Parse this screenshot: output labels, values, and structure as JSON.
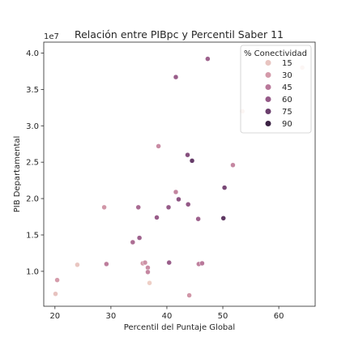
{
  "chart_data": {
    "type": "scatter",
    "title": "Relación entre PIBpc y Percentil Saber 11",
    "xlabel": "Percentil del Puntaje Global",
    "ylabel": "PIB Departamental",
    "y_offset_text": "1e7",
    "xlim": [
      18,
      66.5
    ],
    "ylim": [
      5200000,
      41500000
    ],
    "x_ticks": [
      20,
      30,
      40,
      50,
      60
    ],
    "x_tick_labels": [
      "20",
      "30",
      "40",
      "50",
      "60"
    ],
    "y_ticks": [
      10000000,
      15000000,
      20000000,
      25000000,
      30000000,
      35000000,
      40000000
    ],
    "y_tick_labels": [
      "1.0",
      "1.5",
      "2.0",
      "2.5",
      "3.0",
      "3.5",
      "4.0"
    ],
    "grid": false,
    "legend": {
      "title": "% Conectividad",
      "placement": "top-right",
      "entries": [
        {
          "label": "15",
          "color": "#e8c4c0"
        },
        {
          "label": "30",
          "color": "#d49aaa"
        },
        {
          "label": "45",
          "color": "#b9789a"
        },
        {
          "label": "60",
          "color": "#955a88"
        },
        {
          "label": "75",
          "color": "#6a3e6c"
        },
        {
          "label": "90",
          "color": "#3a2142"
        }
      ]
    },
    "color_scale": {
      "domain": [
        10,
        90
      ],
      "stops": [
        "#f0d3c8",
        "#e8c4c0",
        "#d49aaa",
        "#b9789a",
        "#955a88",
        "#6a3e6c",
        "#3a2142"
      ]
    },
    "points": [
      {
        "x": 64.2,
        "y": 38000000,
        "c": 14
      },
      {
        "x": 47.3,
        "y": 39200000,
        "c": 60
      },
      {
        "x": 41.6,
        "y": 36700000,
        "c": 62
      },
      {
        "x": 53.5,
        "y": 32000000,
        "c": 13
      },
      {
        "x": 38.5,
        "y": 27200000,
        "c": 42
      },
      {
        "x": 43.7,
        "y": 26000000,
        "c": 68
      },
      {
        "x": 44.5,
        "y": 25200000,
        "c": 78
      },
      {
        "x": 51.8,
        "y": 24600000,
        "c": 44
      },
      {
        "x": 50.3,
        "y": 21500000,
        "c": 72
      },
      {
        "x": 41.6,
        "y": 20900000,
        "c": 45
      },
      {
        "x": 42.1,
        "y": 19900000,
        "c": 66
      },
      {
        "x": 43.8,
        "y": 19200000,
        "c": 64
      },
      {
        "x": 40.3,
        "y": 18800000,
        "c": 63
      },
      {
        "x": 34.9,
        "y": 18800000,
        "c": 56
      },
      {
        "x": 28.8,
        "y": 18800000,
        "c": 38
      },
      {
        "x": 38.2,
        "y": 17400000,
        "c": 62
      },
      {
        "x": 45.6,
        "y": 17200000,
        "c": 60
      },
      {
        "x": 50.1,
        "y": 17300000,
        "c": 80
      },
      {
        "x": 35.1,
        "y": 14600000,
        "c": 60
      },
      {
        "x": 33.9,
        "y": 14000000,
        "c": 55
      },
      {
        "x": 29.2,
        "y": 11000000,
        "c": 48
      },
      {
        "x": 24.0,
        "y": 10900000,
        "c": 22
      },
      {
        "x": 35.7,
        "y": 11100000,
        "c": 37
      },
      {
        "x": 36.1,
        "y": 11200000,
        "c": 40
      },
      {
        "x": 40.4,
        "y": 11200000,
        "c": 62
      },
      {
        "x": 45.7,
        "y": 11000000,
        "c": 47
      },
      {
        "x": 46.3,
        "y": 11100000,
        "c": 50
      },
      {
        "x": 36.6,
        "y": 10500000,
        "c": 42
      },
      {
        "x": 36.6,
        "y": 9900000,
        "c": 44
      },
      {
        "x": 20.4,
        "y": 8800000,
        "c": 36
      },
      {
        "x": 36.9,
        "y": 8400000,
        "c": 14
      },
      {
        "x": 20.1,
        "y": 6900000,
        "c": 24
      },
      {
        "x": 44.0,
        "y": 6700000,
        "c": 38
      }
    ]
  }
}
